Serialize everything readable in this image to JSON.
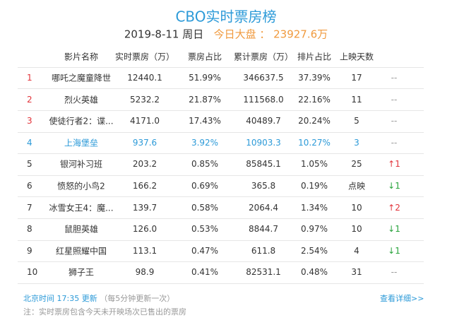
{
  "header": {
    "title": "CBO实时票房榜",
    "date": "2019-8-11 周日",
    "market_label": "今日大盘 ：",
    "market_total": "23927.6万"
  },
  "table": {
    "columns": [
      "影片名称",
      "实时票房（万）",
      "票房占比",
      "累计票房（万）",
      "排片占比",
      "上映天数"
    ],
    "rows": [
      [
        "1",
        "哪吒之魔童降世",
        "12440.1",
        "51.99%",
        "346637.5",
        "37.39%",
        "17",
        "--"
      ],
      [
        "2",
        "烈火英雄",
        "5232.2",
        "21.87%",
        "111568.0",
        "22.16%",
        "11",
        "--"
      ],
      [
        "3",
        "使徒行者2：谍...",
        "4171.0",
        "17.43%",
        "40489.7",
        "20.24%",
        "5",
        "--"
      ],
      [
        "4",
        "上海堡垒",
        "937.6",
        "3.92%",
        "10903.3",
        "10.27%",
        "3",
        "--"
      ],
      [
        "5",
        "银河补习班",
        "203.2",
        "0.85%",
        "85845.1",
        "1.05%",
        "25",
        "↑1"
      ],
      [
        "6",
        "愤怒的小鸟2",
        "166.2",
        "0.69%",
        "365.8",
        "0.19%",
        "点映",
        "↓1"
      ],
      [
        "7",
        "冰雪女王4：魔...",
        "139.7",
        "0.58%",
        "2064.4",
        "1.34%",
        "10",
        "↑2"
      ],
      [
        "8",
        "鼠胆英雄",
        "126.0",
        "0.53%",
        "8844.7",
        "0.97%",
        "10",
        "↓1"
      ],
      [
        "9",
        "红星照耀中国",
        "113.1",
        "0.47%",
        "611.8",
        "2.54%",
        "4",
        "↓1"
      ],
      [
        "10",
        "狮子王",
        "98.9",
        "0.41%",
        "82531.1",
        "0.48%",
        "31",
        "--"
      ]
    ]
  },
  "footer": {
    "update": "北京时间 17:35 更新",
    "interval": "（每5分钟更新一次）",
    "more": "查看详细>>",
    "note": "注：实时票房包含今天未开映场次已售出的票房"
  }
}
